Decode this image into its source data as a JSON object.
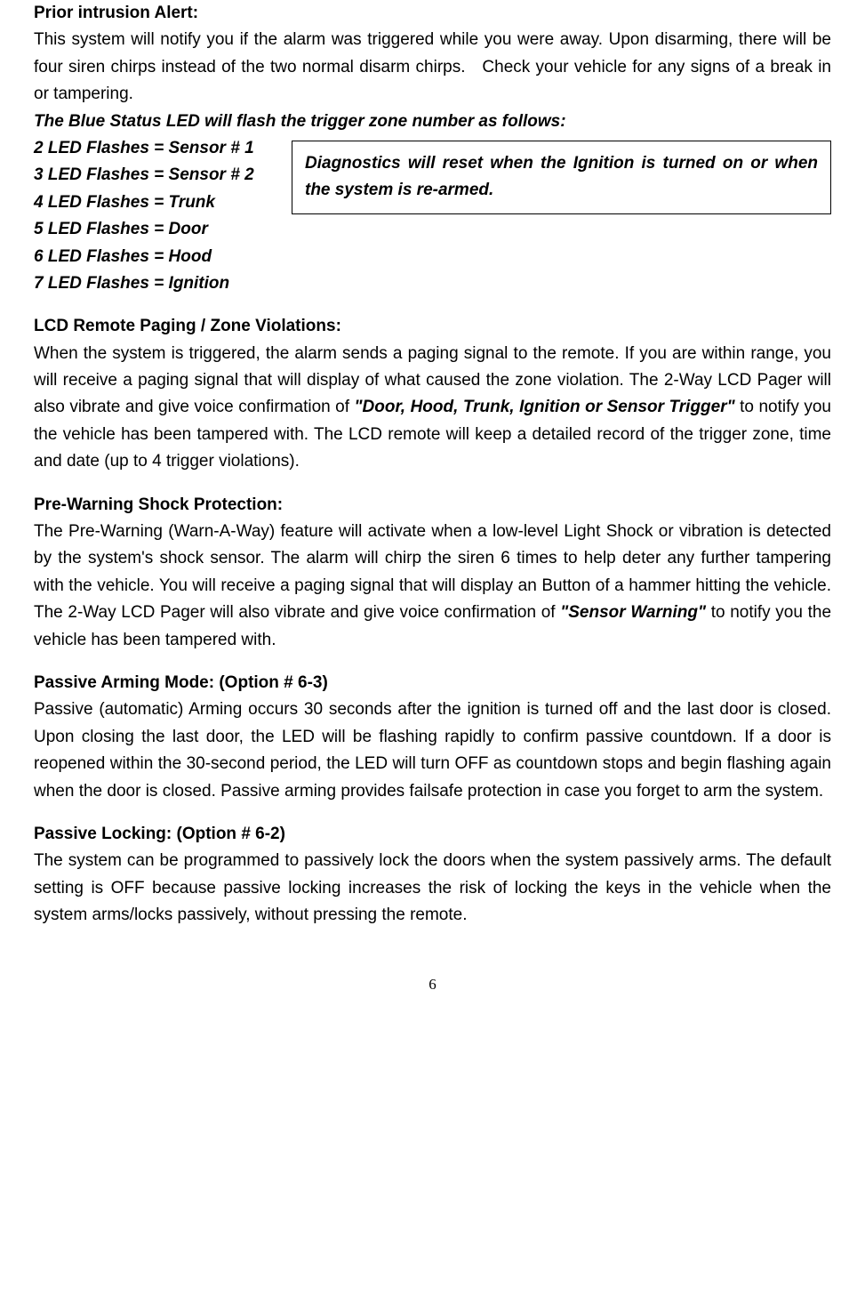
{
  "priorIntrusion": {
    "heading": "Prior intrusion Alert:",
    "body": "This system will notify you if the alarm was triggered while you were away. Upon disarming, there will be four siren chirps instead of the two normal disarm chirps.   Check your vehicle for any signs of a break in or tampering."
  },
  "ledStatus": {
    "intro": "The Blue Status LED will flash the trigger zone number as follows:",
    "flashes": [
      "2 LED Flashes = Sensor # 1",
      "3 LED Flashes = Sensor # 2",
      "4 LED Flashes = Trunk",
      "5 LED Flashes = Door",
      "6 LED Flashes = Hood",
      "7 LED Flashes = Ignition"
    ],
    "diagnosticsBox": "Diagnostics will reset when the Ignition is turned on or when the system is re-armed."
  },
  "lcdRemote": {
    "heading": "LCD Remote Paging / Zone Violations:",
    "part1": "When the system is triggered, the alarm sends a paging signal to the remote. If you are within range, you will receive a paging signal that will display of what caused the zone violation. The 2-Way LCD Pager will also vibrate and give voice confirmation of ",
    "quote1": "\"Door, Hood, Trunk, Ignition or Sensor Trigger\"",
    "part2": " to notify you the vehicle has been tampered with. The LCD remote will keep a detailed record of the trigger zone, time and date (up to 4 trigger violations)."
  },
  "preWarning": {
    "heading": "Pre-Warning Shock Protection:",
    "part1": "The Pre-Warning (Warn-A-Way) feature will activate when a low-level Light Shock or vibration is detected by the system's shock sensor. The alarm will chirp the siren 6 times to help deter any further tampering with the vehicle. You will receive a paging signal that will display an Button of a hammer hitting the vehicle. The 2-Way LCD Pager will also vibrate and give voice confirmation of ",
    "quote1": "\"Sensor Warning\"",
    "part2": " to notify you the vehicle has been tampered with."
  },
  "passiveArming": {
    "heading": "Passive Arming Mode: (Option # 6-3)",
    "body": "Passive (automatic) Arming occurs 30 seconds after the ignition is turned off and the last door is closed. Upon closing the last door, the LED will be flashing rapidly to confirm passive countdown. If a door is reopened within the 30-second period, the LED will turn OFF as countdown stops and begin flashing again when the door is closed. Passive arming provides failsafe protection in case you forget to arm the system."
  },
  "passiveLocking": {
    "heading": "Passive Locking: (Option # 6-2)",
    "body": "The system can be programmed to passively lock the doors when the system passively arms. The default setting is OFF because passive locking increases the risk of locking the keys in the vehicle when the system arms/locks passively, without pressing the remote."
  },
  "pageNumber": "6"
}
